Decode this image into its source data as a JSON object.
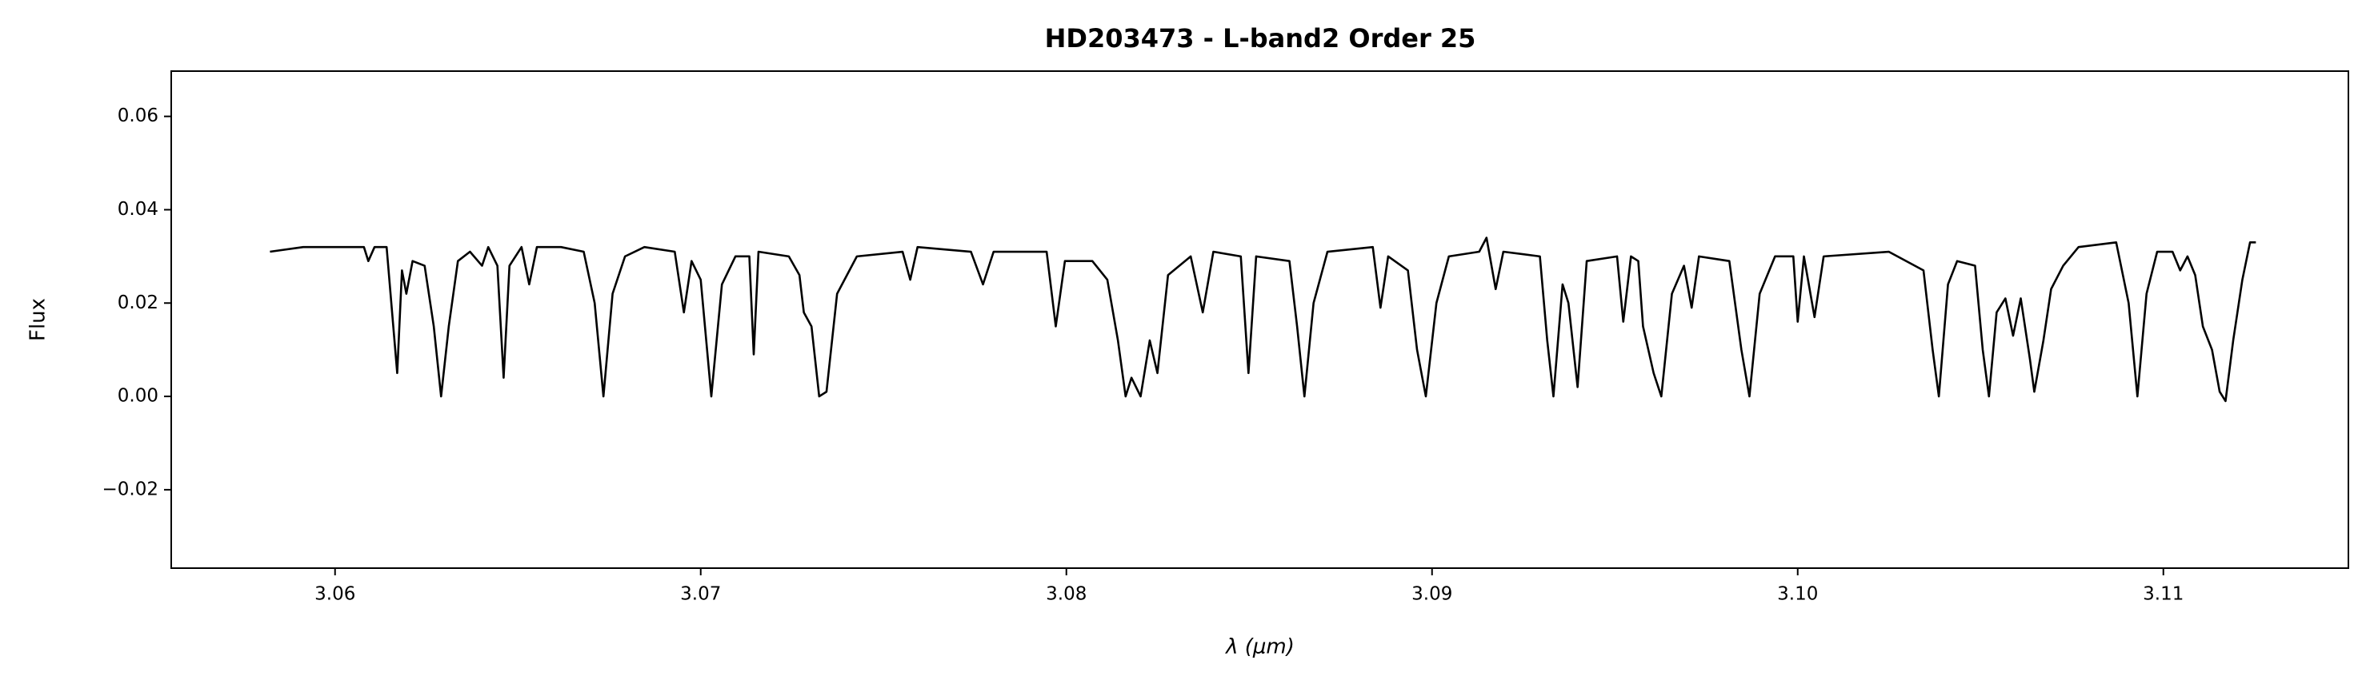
{
  "chart_data": {
    "type": "line",
    "title": "HD203473 - L-band2 Order 25",
    "xlabel": "λ (μm)",
    "ylabel": "Flux",
    "color": "#000000",
    "x": [
      3.05822,
      3.05913,
      3.06017,
      3.06079,
      3.06091,
      3.06108,
      3.06141,
      3.0617,
      3.06183,
      3.06195,
      3.06212,
      3.06245,
      3.0627,
      3.0629,
      3.06311,
      3.06336,
      3.06369,
      3.06402,
      3.06419,
      3.06444,
      3.06461,
      3.06477,
      3.0651,
      3.06531,
      3.06552,
      3.06618,
      3.0668,
      3.0671,
      3.06734,
      3.06759,
      3.06793,
      3.06846,
      3.06929,
      3.06954,
      3.06975,
      3.07,
      3.07029,
      3.07058,
      3.07095,
      3.07133,
      3.07145,
      3.07158,
      3.07241,
      3.0727,
      3.07282,
      3.07303,
      3.07324,
      3.07344,
      3.07373,
      3.07427,
      3.07552,
      3.07573,
      3.07593,
      3.07739,
      3.07772,
      3.07801,
      3.07946,
      3.07971,
      3.07996,
      3.08071,
      3.08112,
      3.08141,
      3.08162,
      3.08178,
      3.08203,
      3.08228,
      3.08249,
      3.08278,
      3.0834,
      3.08373,
      3.08402,
      3.08477,
      3.08498,
      3.08519,
      3.0861,
      3.08631,
      3.08651,
      3.08676,
      3.08714,
      3.08838,
      3.08859,
      3.0888,
      3.08934,
      3.08959,
      3.08983,
      3.09012,
      3.09046,
      3.09129,
      3.09149,
      3.09174,
      3.09195,
      3.09295,
      3.09315,
      3.09332,
      3.09357,
      3.09373,
      3.09398,
      3.09423,
      3.09506,
      3.09523,
      3.09544,
      3.09564,
      3.09577,
      3.09606,
      3.09627,
      3.09656,
      3.09689,
      3.0971,
      3.0973,
      3.09813,
      3.09846,
      3.09868,
      3.09896,
      3.09938,
      3.09988,
      3.1,
      3.10017,
      3.10046,
      3.10071,
      3.10249,
      3.10344,
      3.10369,
      3.10386,
      3.10411,
      3.10436,
      3.10485,
      3.10506,
      3.10523,
      3.10544,
      3.10568,
      3.10589,
      3.1061,
      3.10635,
      3.10647,
      3.10672,
      3.10693,
      3.10726,
      3.10768,
      3.10871,
      3.10905,
      3.10929,
      3.10954,
      3.10983,
      3.11025,
      3.11046,
      3.11066,
      3.11087,
      3.11108,
      3.11133,
      3.11154,
      3.1117,
      3.11191,
      3.11216,
      3.11237,
      3.11253
    ],
    "values": [
      0.031,
      0.032,
      0.032,
      0.032,
      0.029,
      0.032,
      0.032,
      0.005,
      0.027,
      0.022,
      0.029,
      0.028,
      0.015,
      0.0,
      0.015,
      0.029,
      0.031,
      0.028,
      0.032,
      0.028,
      0.004,
      0.028,
      0.032,
      0.024,
      0.032,
      0.032,
      0.031,
      0.02,
      0.0,
      0.022,
      0.03,
      0.032,
      0.031,
      0.018,
      0.029,
      0.025,
      0.0,
      0.024,
      0.03,
      0.03,
      0.009,
      0.031,
      0.03,
      0.026,
      0.018,
      0.015,
      0.0,
      0.001,
      0.022,
      0.03,
      0.031,
      0.025,
      0.032,
      0.031,
      0.024,
      0.031,
      0.031,
      0.015,
      0.029,
      0.029,
      0.025,
      0.012,
      0.0,
      0.004,
      0.0,
      0.012,
      0.005,
      0.026,
      0.03,
      0.018,
      0.031,
      0.03,
      0.005,
      0.03,
      0.029,
      0.015,
      0.0,
      0.02,
      0.031,
      0.032,
      0.019,
      0.03,
      0.027,
      0.01,
      0.0,
      0.02,
      0.03,
      0.031,
      0.034,
      0.023,
      0.031,
      0.03,
      0.012,
      0.0,
      0.024,
      0.02,
      0.002,
      0.029,
      0.03,
      0.016,
      0.03,
      0.029,
      0.015,
      0.005,
      0.0,
      0.022,
      0.028,
      0.019,
      0.03,
      0.029,
      0.01,
      0.0,
      0.022,
      0.03,
      0.03,
      0.016,
      0.03,
      0.017,
      0.03,
      0.031,
      0.027,
      0.01,
      0.0,
      0.024,
      0.029,
      0.028,
      0.01,
      0.0,
      0.018,
      0.021,
      0.013,
      0.021,
      0.008,
      0.001,
      0.012,
      0.023,
      0.028,
      0.032,
      0.033,
      0.02,
      0.0,
      0.022,
      0.031,
      0.031,
      0.027,
      0.03,
      0.026,
      0.015,
      0.01,
      0.001,
      -0.001,
      0.012,
      0.025,
      0.033,
      0.033
    ],
    "xlim": [
      3.05552,
      3.11506
    ],
    "ylim": [
      -0.0368,
      0.0697
    ],
    "xticks": [
      3.06,
      3.07,
      3.08,
      3.09,
      {
        "value": 3.1,
        "label": "3.10"
      },
      3.11
    ],
    "yticks": [
      {
        "value": -0.02,
        "label": "−0.02"
      },
      {
        "value": 0,
        "label": "0.00"
      },
      0.02,
      0.04,
      0.06
    ]
  }
}
